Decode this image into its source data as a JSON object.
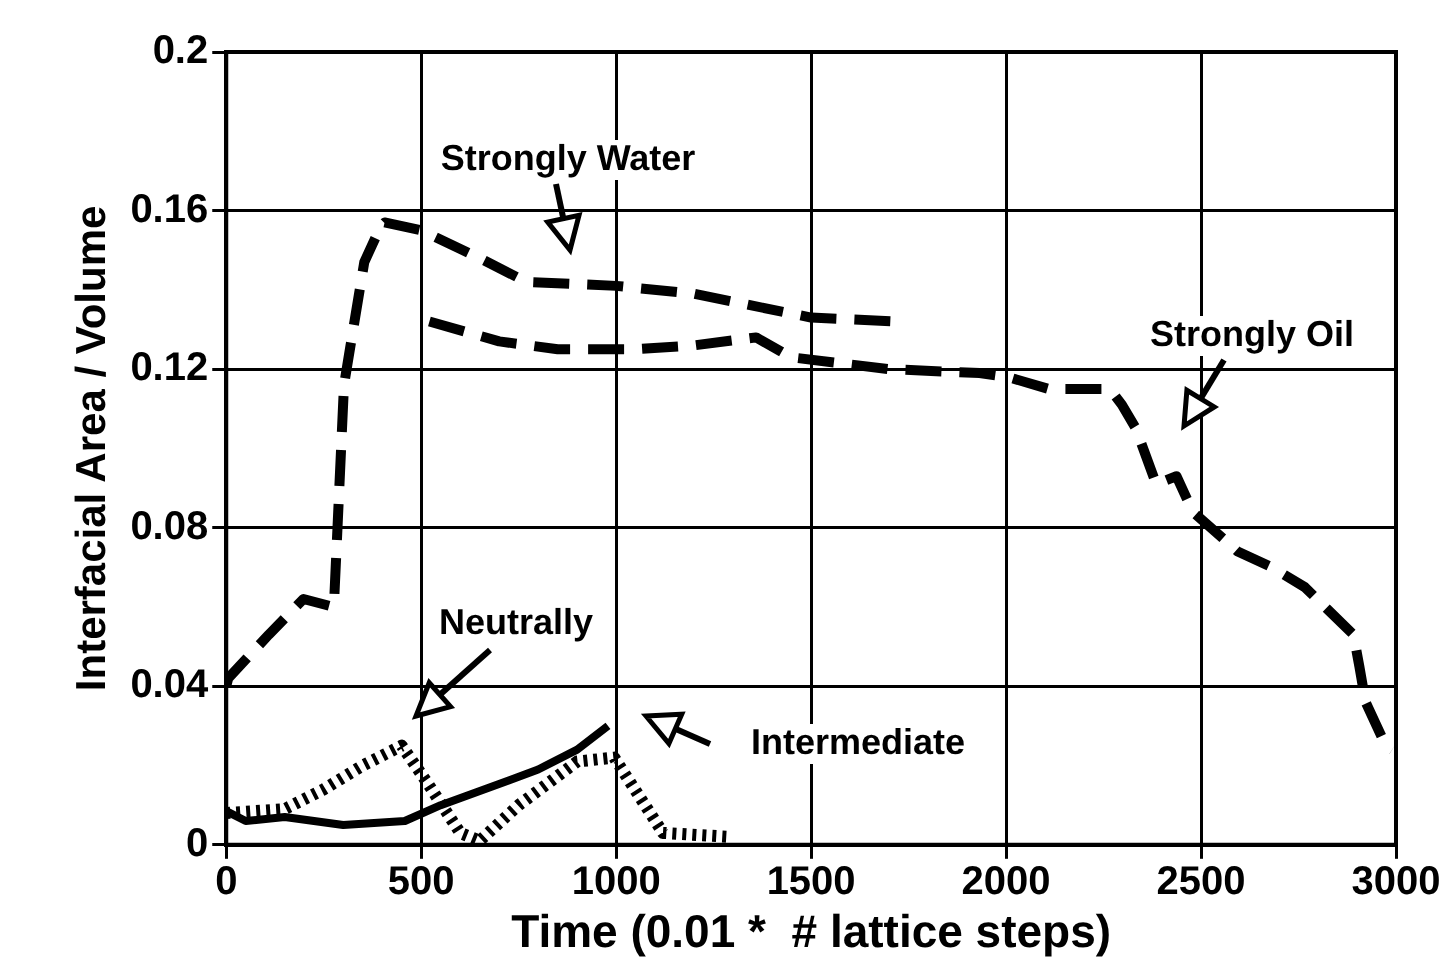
{
  "chart_data": {
    "type": "line",
    "xlabel": "Time (0.01 *  # lattice steps)",
    "ylabel": "Interfacial Area / Volume",
    "xlim": [
      0,
      3000
    ],
    "xticks": [
      0,
      500,
      1000,
      1500,
      2000,
      2500,
      3000
    ],
    "ylim": [
      0,
      0.2
    ],
    "yticks": [
      0,
      0.04,
      0.08,
      0.12,
      0.16,
      0.2
    ],
    "grid": true,
    "legend": false,
    "marker": "none",
    "series": [
      {
        "color": "#000000",
        "line_style": "dashed",
        "x": [
          0,
          5,
          109,
          198,
          276,
          302,
          354,
          396,
          406,
          500,
          650,
          770,
          1000,
          1200,
          1500,
          1724
        ],
        "values": [
          0.04,
          0.042,
          0.053,
          0.062,
          0.06,
          0.116,
          0.147,
          0.156,
          0.157,
          0.155,
          0.148,
          0.142,
          0.141,
          0.139,
          0.133,
          0.132
        ]
      },
      {
        "color": "#000000",
        "line_style": "dashed",
        "x": [
          521,
          700,
          850,
          1047,
          1200,
          1359,
          1448,
          1700,
          1932,
          2005,
          2109,
          2266,
          2297,
          2333,
          2385,
          2437,
          2479,
          2594,
          2682,
          2766,
          2891,
          2906,
          2922,
          2974,
          2990
        ],
        "values": [
          0.132,
          0.127,
          0.125,
          0.125,
          0.126,
          0.128,
          0.123,
          0.12,
          0.119,
          0.118,
          0.115,
          0.115,
          0.111,
          0.105,
          0.091,
          0.093,
          0.084,
          0.074,
          0.07,
          0.065,
          0.053,
          0.045,
          0.036,
          0.025,
          0.024
        ]
      },
      {
        "color": "#000000",
        "line_style": "dotted",
        "x": [
          0,
          150,
          250,
          350,
          450,
          520,
          600,
          650,
          750,
          900,
          995,
          1120,
          1290
        ],
        "values": [
          0.008,
          0.009,
          0.014,
          0.02,
          0.025,
          0.015,
          0.003,
          0.001,
          0.01,
          0.021,
          0.022,
          0.003,
          0.002
        ]
      },
      {
        "color": "#000000",
        "line_style": "solid",
        "x": [
          0,
          50,
          150,
          300,
          458,
          550,
          682,
          800,
          900,
          979
        ],
        "values": [
          0.0085,
          0.006,
          0.007,
          0.005,
          0.006,
          0.01,
          0.0147,
          0.019,
          0.024,
          0.03
        ]
      }
    ],
    "annotations": [
      "Strongly Water",
      "Strongly Oil",
      "Neutrally",
      "Intermediate"
    ]
  }
}
